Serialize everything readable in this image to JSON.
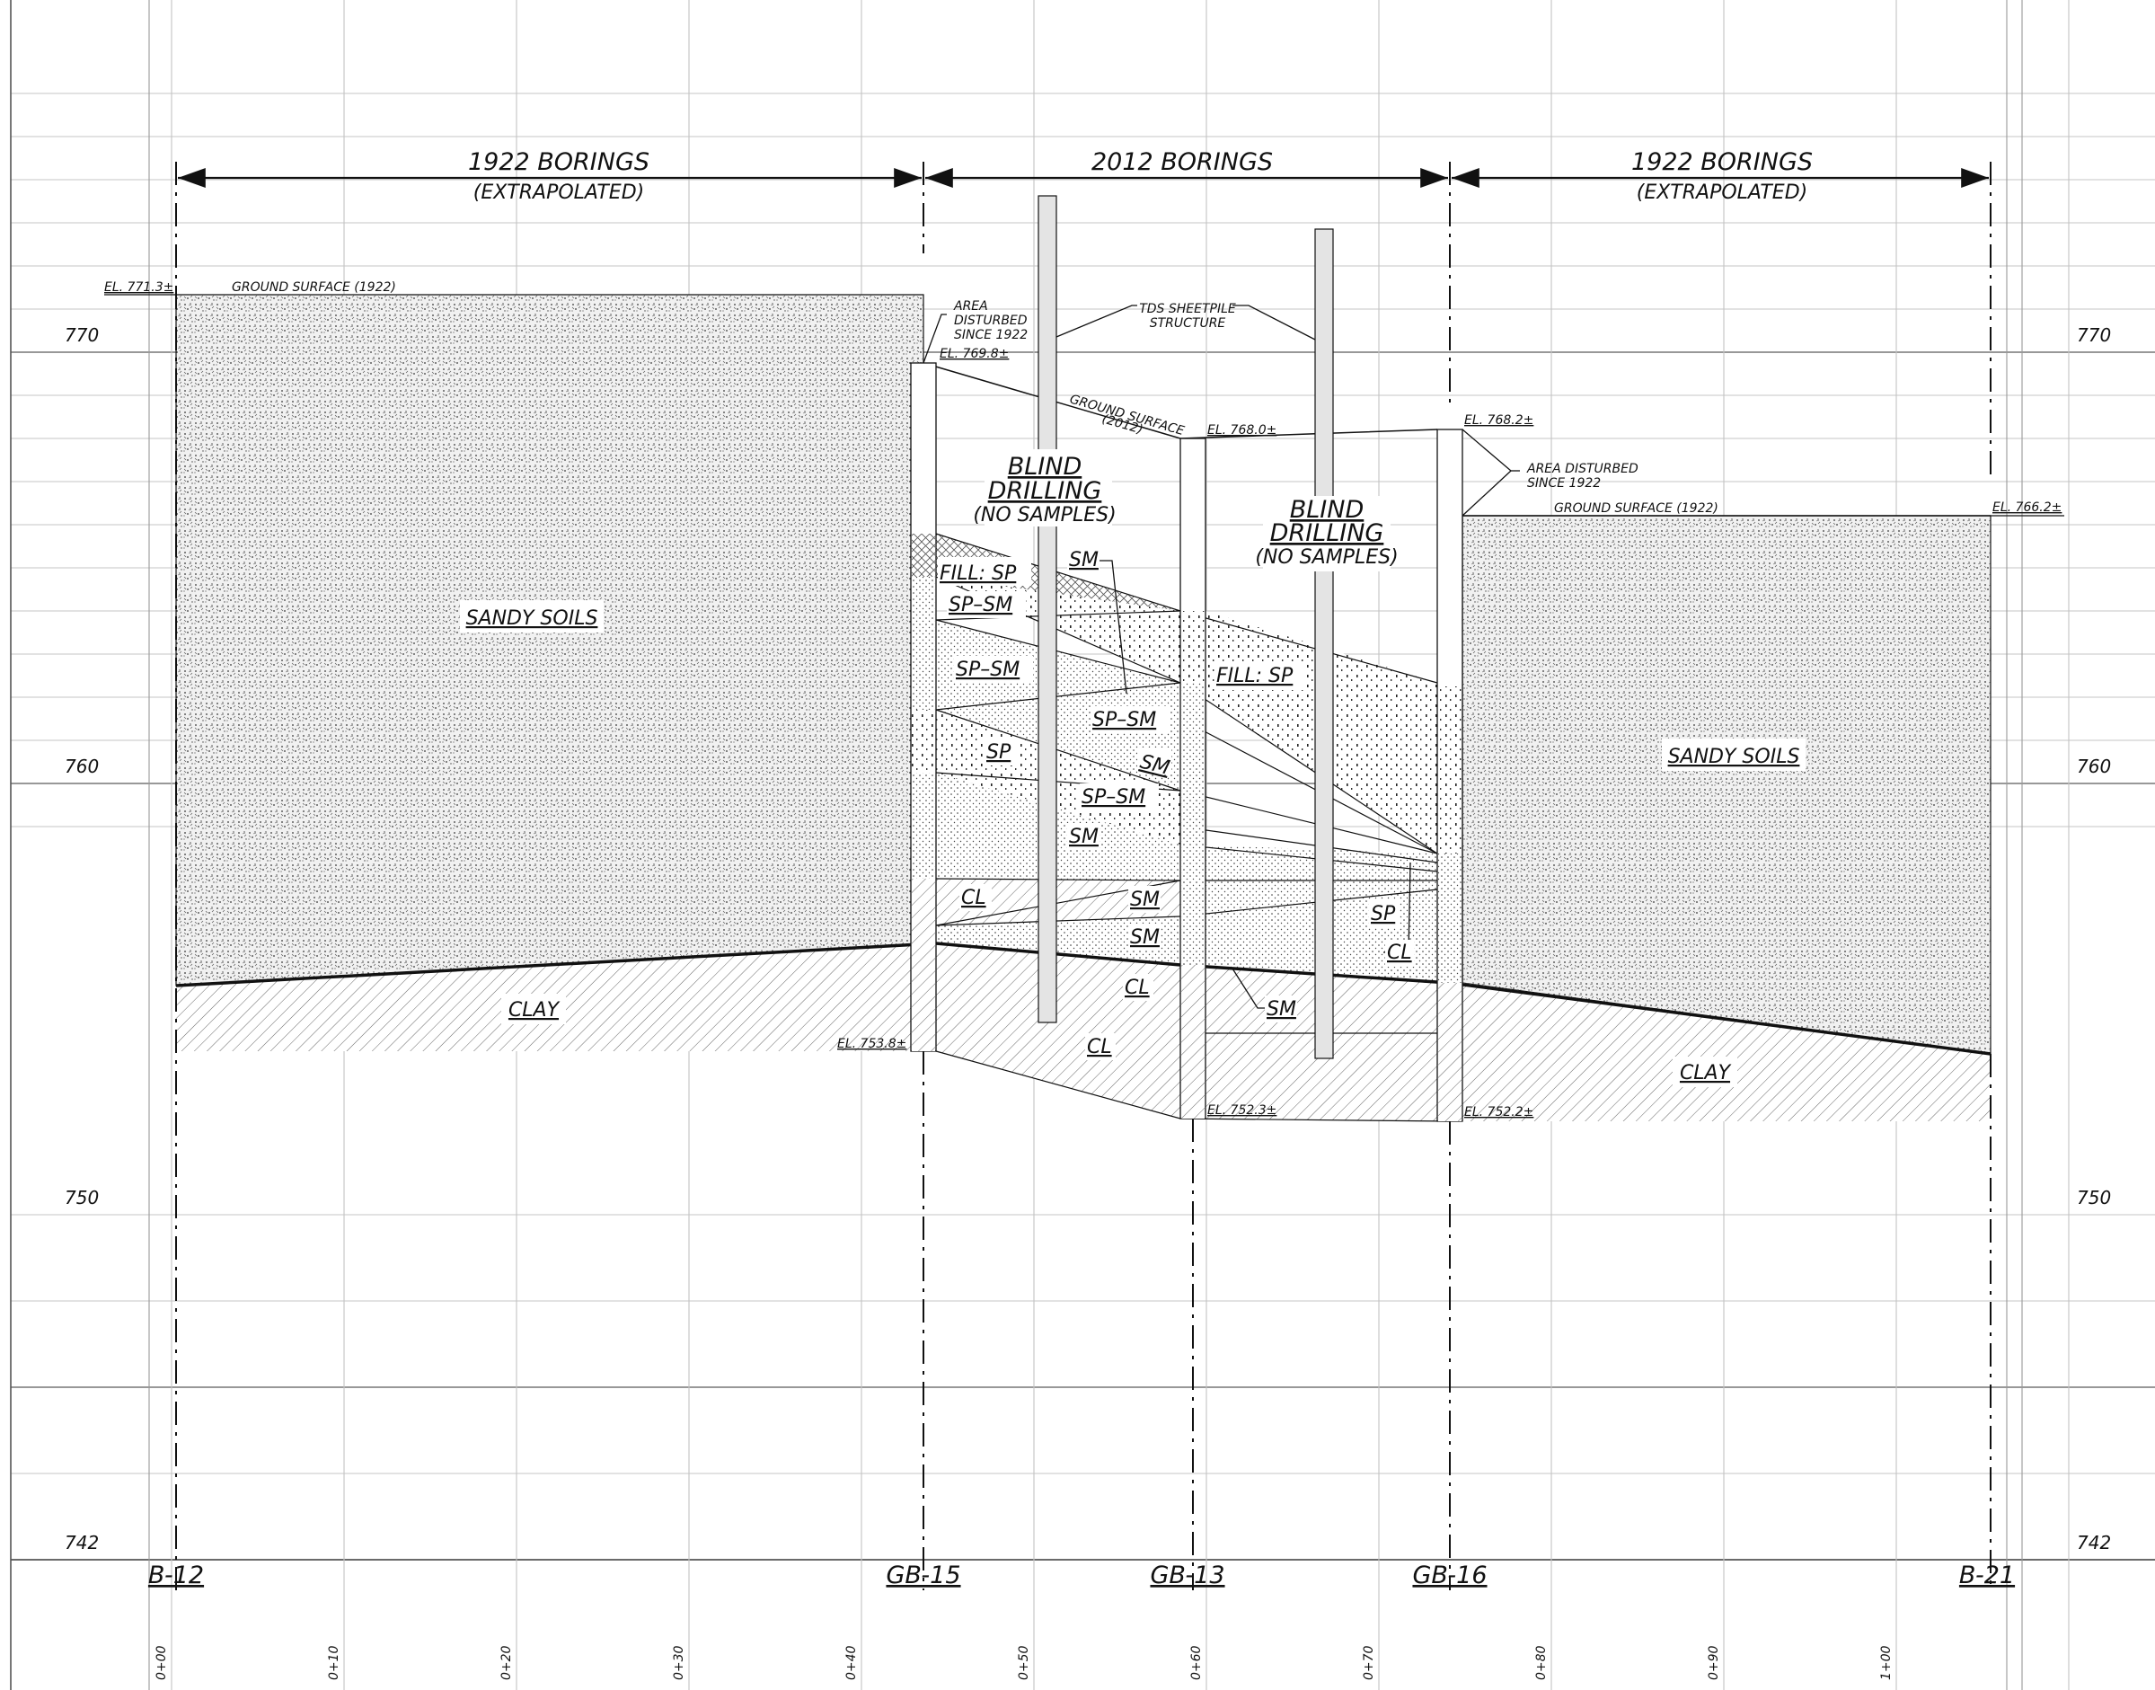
{
  "headers": {
    "left_title": "1922 BORINGS",
    "left_sub": "(EXTRAPOLATED)",
    "mid_title": "2012 BORINGS",
    "right_title": "1922 BORINGS",
    "right_sub": "(EXTRAPOLATED)"
  },
  "elevation_axis": {
    "left": [
      "770",
      "760",
      "750",
      "742"
    ],
    "right": [
      "770",
      "760",
      "750",
      "742"
    ]
  },
  "borings": [
    "B-12",
    "GB-15",
    "GB-13",
    "GB-16",
    "B-21"
  ],
  "stations": [
    "0+00",
    "0+10",
    "0+20",
    "0+30",
    "0+40",
    "0+50",
    "0+60",
    "0+70",
    "0+80",
    "0+90",
    "1+00"
  ],
  "elevations": {
    "b12_top": "EL. 771.3±",
    "gb15_top": "EL. 769.8±",
    "gb13_top": "EL. 768.0±",
    "gb16_top": "EL. 768.2±",
    "b21_top": "EL. 766.2±",
    "gb15_bottom": "EL. 753.8±",
    "gb13_bottom": "EL. 752.3±",
    "gb16_bottom": "EL. 752.2±"
  },
  "notes": {
    "ground_1922_left": "GROUND SURFACE (1922)",
    "ground_1922_right": "GROUND SURFACE (1922)",
    "ground_2012_a": "GROUND SURFACE",
    "ground_2012_b": "(2012)",
    "area_left_1": "AREA",
    "area_left_2": "DISTURBED",
    "area_left_3": "SINCE 1922",
    "area_right_1": "AREA DISTURBED",
    "area_right_2": "SINCE 1922",
    "sheetpile_1": "TDS SHEETPILE",
    "sheetpile_2": "STRUCTURE"
  },
  "blind": {
    "b1": "BLIND",
    "d1": "DRILLING",
    "n1": "(NO SAMPLES)",
    "b2": "BLIND",
    "d2": "DRILLING",
    "n2": "(NO SAMPLES)"
  },
  "strata": {
    "sandy_left": "SANDY SOILS",
    "sandy_right": "SANDY SOILS",
    "clay_left": "CLAY",
    "clay_right": "CLAY",
    "fill_sp_1": "FILL: SP",
    "fill_sp_2": "FILL: SP",
    "sm_1": "SM",
    "sp_sm_1": "SP–SM",
    "sp_sm_2": "SP–SM",
    "sp_sm_3": "SP–SM",
    "sp_sm_4": "SP–SM",
    "sp_1": "SP",
    "sm_2": "SM",
    "sm_3": "SM",
    "cl_1": "CL",
    "sm_4": "SM",
    "sm_5": "SM",
    "cl_2": "CL",
    "sm_6": "SM",
    "cl_3": "CL",
    "sp_2": "SP",
    "cl_4": "CL"
  },
  "colors": {
    "line": "#111111",
    "grid": "#b5b5b5",
    "sheetpile": "#dddddd"
  }
}
